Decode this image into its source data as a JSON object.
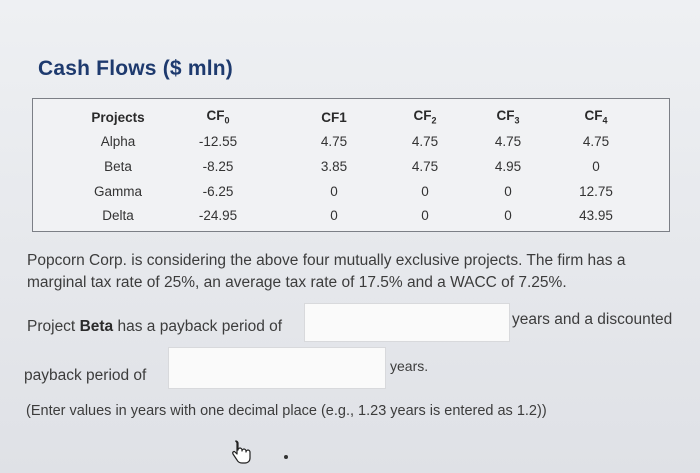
{
  "title": "Cash Flows ($ mln)",
  "table": {
    "headers": {
      "projects": "Projects",
      "cf0_base": "CF",
      "cf0_sub": "0",
      "cf1": "CF1",
      "cf2_base": "CF",
      "cf2_sub": "2",
      "cf3_base": "CF",
      "cf3_sub": "3",
      "cf4_base": "CF",
      "cf4_sub": "4"
    },
    "rows": [
      {
        "project": "Alpha",
        "cf0": "-12.55",
        "cf1": "4.75",
        "cf2": "4.75",
        "cf3": "4.75",
        "cf4": "4.75"
      },
      {
        "project": "Beta",
        "cf0": "-8.25",
        "cf1": "3.85",
        "cf2": "4.75",
        "cf3": "4.95",
        "cf4": "0"
      },
      {
        "project": "Gamma",
        "cf0": "-6.25",
        "cf1": "0",
        "cf2": "0",
        "cf3": "0",
        "cf4": "12.75"
      },
      {
        "project": "Delta",
        "cf0": "-24.95",
        "cf1": "0",
        "cf2": "0",
        "cf3": "0",
        "cf4": "43.95"
      }
    ]
  },
  "question": {
    "paragraph": "Popcorn Corp. is considering the above four mutually exclusive projects. The firm has a marginal tax rate of 25%, an average tax rate of 17.5% and a WACC of 7.25%.",
    "project_prefix": "Project ",
    "project_name": "Beta",
    "has_payback": " has a payback period of",
    "years_and_discounted": "years and a discounted",
    "payback_period_of": "payback period of",
    "years": "years.",
    "instructions": "(Enter values in years with one decimal place (e.g., 1.23 years is entered as 1.2))"
  },
  "inputs": {
    "payback_value": "",
    "discounted_payback_value": ""
  },
  "icons": {
    "cursor": "hand-pointer-icon"
  }
}
